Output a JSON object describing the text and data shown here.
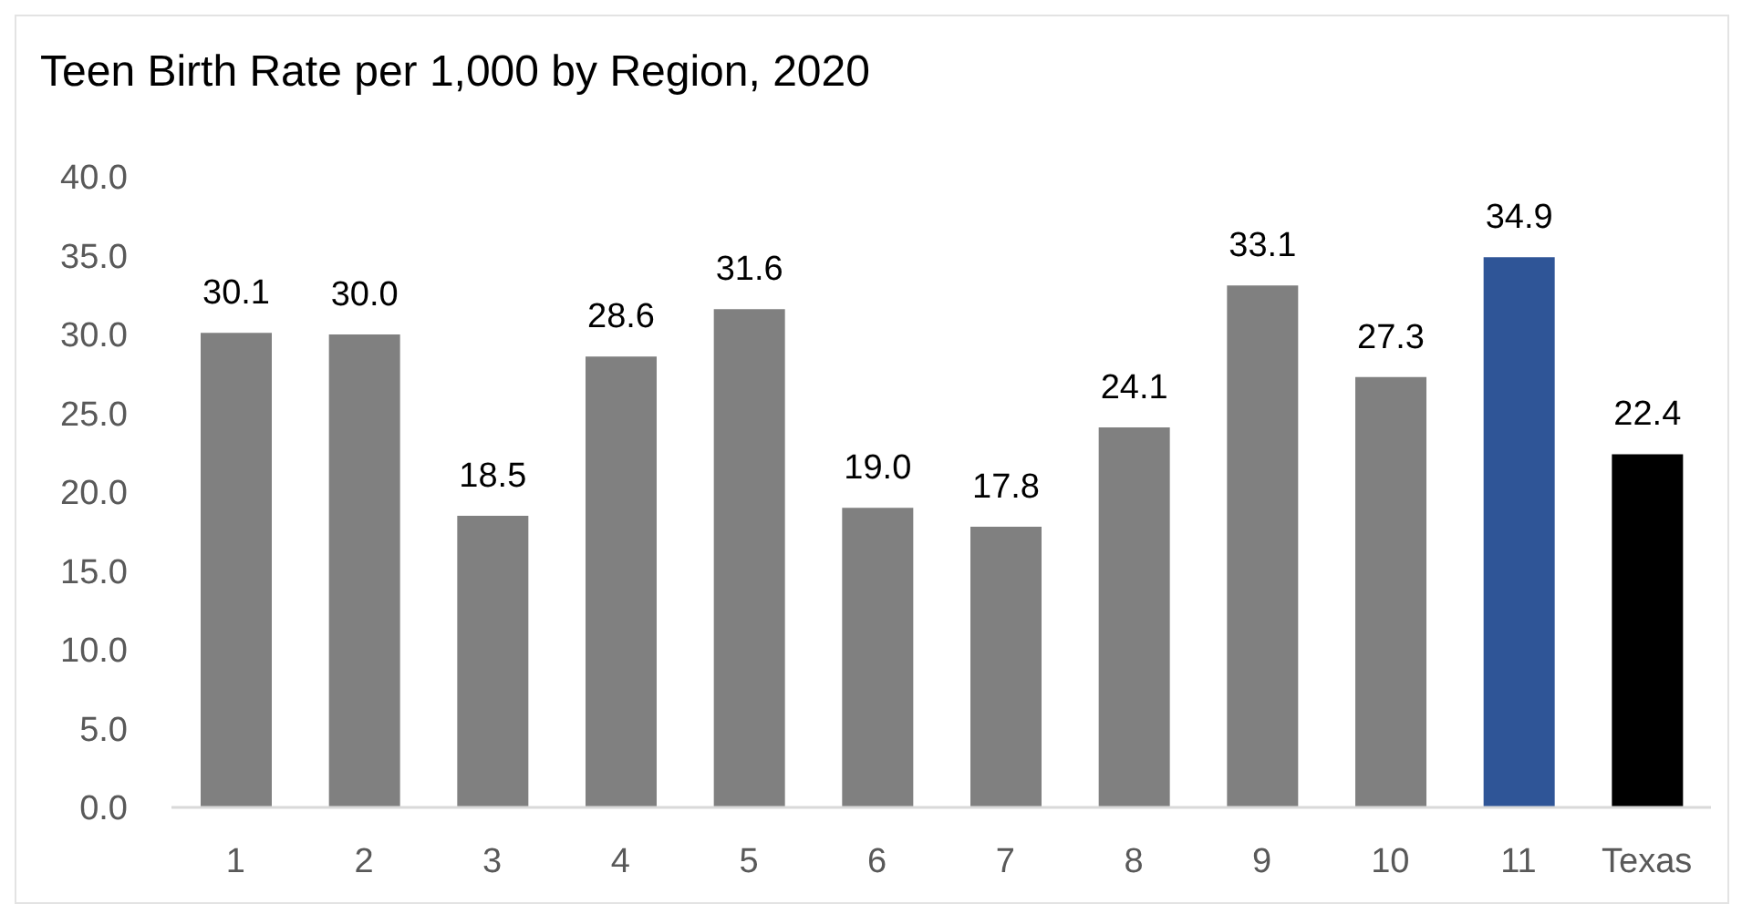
{
  "chart_data": {
    "type": "bar",
    "title": "Teen Birth Rate per 1,000 by Region, 2020",
    "categories": [
      "1",
      "2",
      "3",
      "4",
      "5",
      "6",
      "7",
      "8",
      "9",
      "10",
      "11",
      "Texas"
    ],
    "values": [
      30.1,
      30.0,
      18.5,
      28.6,
      31.6,
      19.0,
      17.8,
      24.1,
      33.1,
      27.3,
      34.9,
      22.4
    ],
    "colors": [
      "#808080",
      "#808080",
      "#808080",
      "#808080",
      "#808080",
      "#808080",
      "#808080",
      "#808080",
      "#808080",
      "#808080",
      "#2f5597",
      "#000000"
    ],
    "value_labels": [
      "30.1",
      "30.0",
      "18.5",
      "28.6",
      "31.6",
      "19.0",
      "17.8",
      "24.1",
      "33.1",
      "27.3",
      "34.9",
      "22.4"
    ],
    "ylim": [
      0,
      40
    ],
    "yticks": [
      {
        "value": 0,
        "label": "0.0"
      },
      {
        "value": 5,
        "label": "5.0"
      },
      {
        "value": 10,
        "label": "10.0"
      },
      {
        "value": 15,
        "label": "15.0"
      },
      {
        "value": 20,
        "label": "20.0"
      },
      {
        "value": 25,
        "label": "25.0"
      },
      {
        "value": 30,
        "label": "30.0"
      },
      {
        "value": 35,
        "label": "35.0"
      },
      {
        "value": 40,
        "label": "40.0"
      }
    ]
  }
}
